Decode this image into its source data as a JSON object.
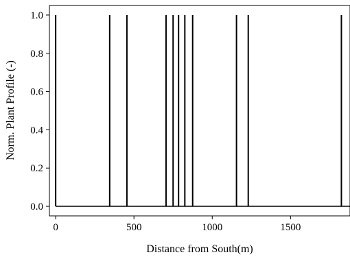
{
  "chart_data": {
    "type": "line",
    "title": "",
    "xlabel": "Distance from South(m)",
    "ylabel": "Norm. Plant Profile (-)",
    "xlim": [
      -40,
      1880
    ],
    "ylim": [
      -0.05,
      1.05
    ],
    "xticks": [
      0,
      500,
      1000,
      1500
    ],
    "xtick_labels": [
      "0",
      "500",
      "1000",
      "1500"
    ],
    "yticks": [
      0.0,
      0.2,
      0.4,
      0.6,
      0.8,
      1.0
    ],
    "ytick_labels": [
      "0.0",
      "0.2",
      "0.4",
      "0.6",
      "0.8",
      "1.0"
    ],
    "grid": false,
    "legend": "none",
    "line_color": "#000000",
    "series": [
      {
        "baseline": 0.0,
        "peak_value": 1.0,
        "peak_x": [
          0,
          345,
          455,
          705,
          750,
          785,
          825,
          875,
          1155,
          1230,
          1825
        ]
      }
    ]
  }
}
